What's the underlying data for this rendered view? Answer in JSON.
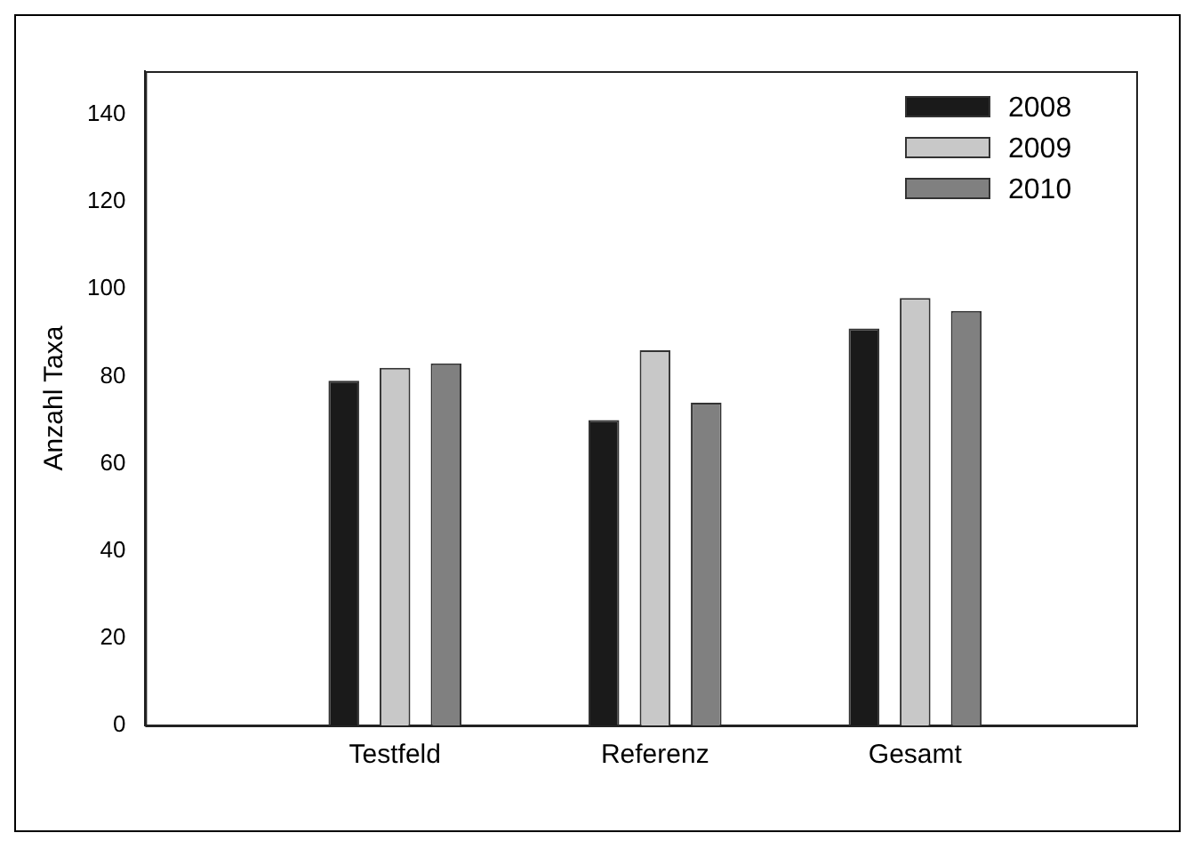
{
  "chart_data": {
    "type": "bar",
    "ylabel": "Anzahl Taxa",
    "categories": [
      "Testfeld",
      "Referenz",
      "Gesamt"
    ],
    "series": [
      {
        "name": "2008",
        "color": "#1a1a1a",
        "values": [
          79,
          70,
          91
        ]
      },
      {
        "name": "2009",
        "color": "#c8c8c8",
        "values": [
          82,
          86,
          98
        ]
      },
      {
        "name": "2010",
        "color": "#808080",
        "values": [
          83,
          74,
          95
        ]
      }
    ],
    "ylim": [
      0,
      150
    ],
    "yticks": [
      0,
      20,
      40,
      60,
      80,
      100,
      120,
      140
    ],
    "grid": false,
    "legend": "top right"
  }
}
